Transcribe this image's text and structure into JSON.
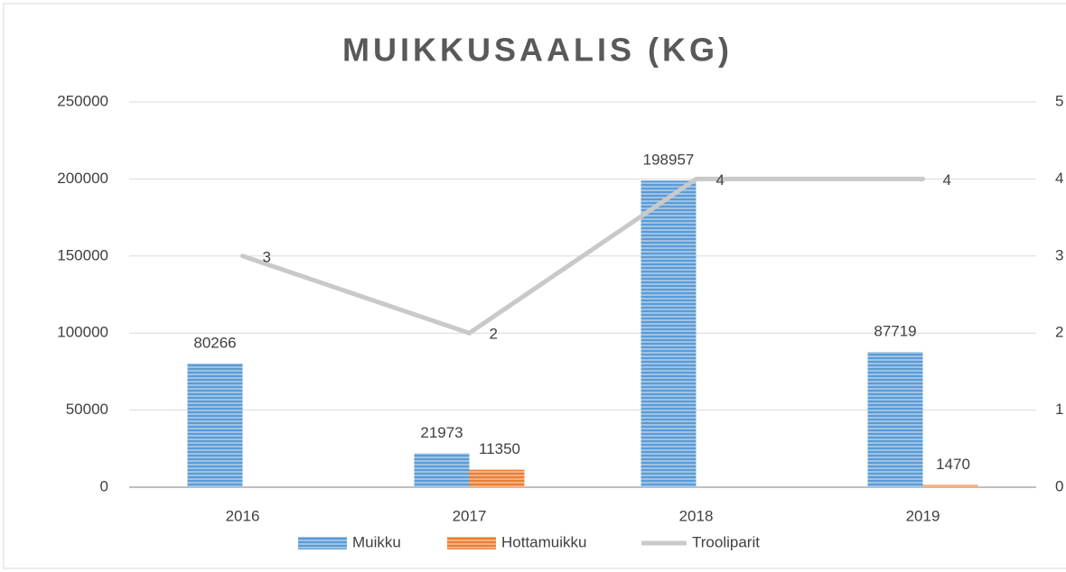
{
  "chart_data": {
    "type": "bar",
    "title": "MUIKKUSAALIS (KG)",
    "categories": [
      "2016",
      "2017",
      "2018",
      "2019"
    ],
    "series": [
      {
        "name": "Muikku",
        "color": "#5b9bd5",
        "values": [
          80266,
          21973,
          198957,
          87719
        ]
      },
      {
        "name": "Hottamuikku",
        "color": "#ed7d31",
        "values": [
          null,
          11350,
          null,
          1470
        ]
      },
      {
        "name": "Trooliparit",
        "color": "#c9c9c9",
        "type": "line",
        "axis": "y2",
        "values": [
          3,
          2,
          4,
          4
        ]
      }
    ],
    "ylim": [
      0,
      250000
    ],
    "yticks": [
      0,
      50000,
      100000,
      150000,
      200000,
      250000
    ],
    "y2lim": [
      0,
      5
    ],
    "y2ticks": [
      0,
      1,
      2,
      3,
      4,
      5
    ],
    "grid": true,
    "legend": "bottom"
  }
}
